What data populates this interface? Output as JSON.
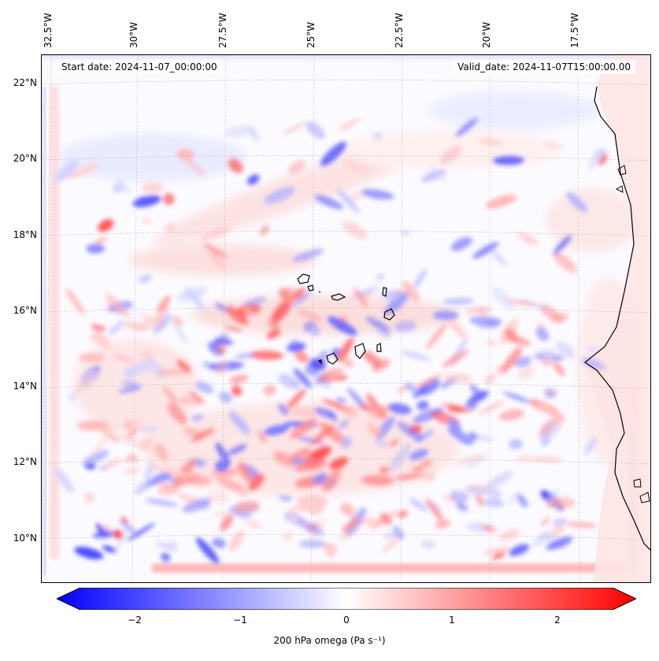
{
  "map": {
    "longitude_labels": [
      "32.5°W",
      "30°W",
      "27.5°W",
      "25°W",
      "22.5°W",
      "20°W",
      "17.5°W"
    ],
    "latitude_labels": [
      "22°N",
      "20°N",
      "18°N",
      "16°N",
      "14°N",
      "12°N",
      "10°N"
    ],
    "start_date": "Start date: 2024-11-07_00:00:00",
    "valid_date": "Valid_date: 2024-11-07T15:00:00.00",
    "colors": {
      "negative": "#0000ff",
      "neutral": "#ffffff",
      "positive": "#ff0000",
      "coastline": "#000000",
      "grid": "#bbbbbb"
    }
  },
  "colorbar": {
    "tick_labels": [
      "−2",
      "−1",
      "0",
      "1",
      "2"
    ],
    "label": "200 hPa omega (Pa s⁻¹)",
    "range": [
      -2.75,
      2.75
    ]
  }
}
